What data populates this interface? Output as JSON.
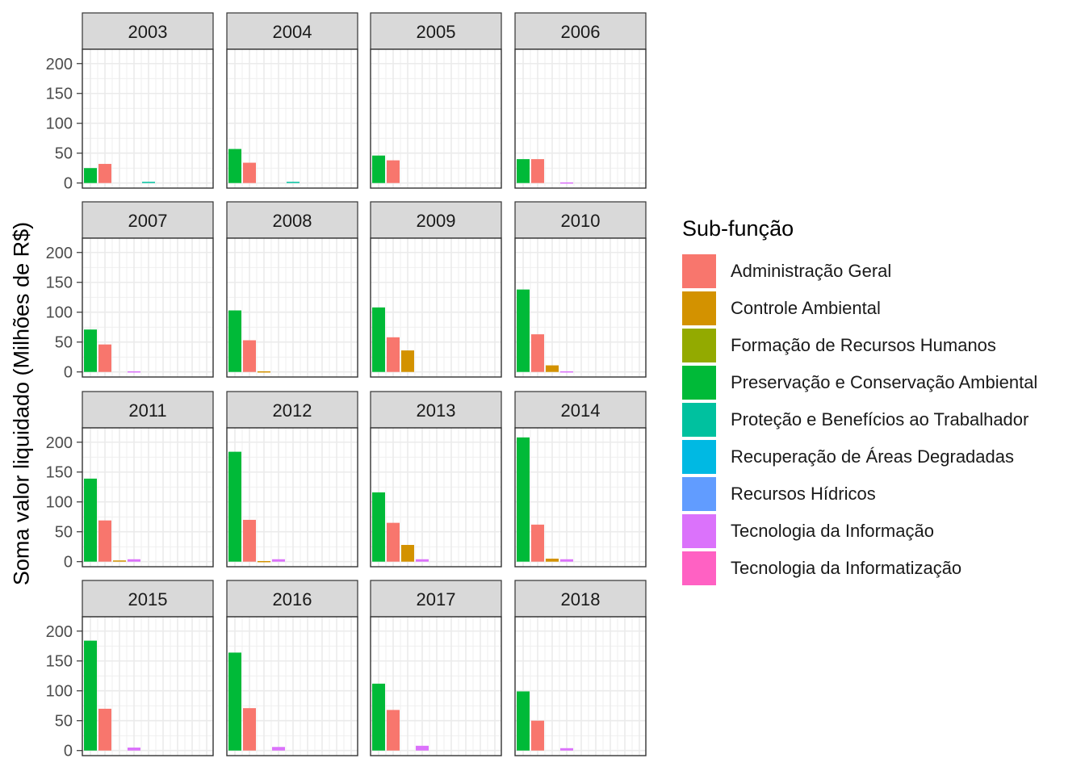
{
  "chart_data": {
    "type": "bar",
    "facet_by": "year",
    "ylabel": "Soma valor liquidado (Milhões de R$)",
    "ylim": [
      0,
      210
    ],
    "yticks": [
      0,
      50,
      100,
      150,
      200
    ],
    "grid": true,
    "legend": {
      "title": "Sub-função",
      "placement": "right",
      "entries": [
        {
          "name": "Administração Geral",
          "color": "#F8766D"
        },
        {
          "name": "Controle Ambiental",
          "color": "#D39200"
        },
        {
          "name": "Formação de Recursos Humanos",
          "color": "#93AA00"
        },
        {
          "name": "Preservação e Conservação Ambiental",
          "color": "#00BA38"
        },
        {
          "name": "Proteção e Benefícios ao Trabalhador",
          "color": "#00C19F"
        },
        {
          "name": "Recuperação de Áreas Degradadas",
          "color": "#00B9E3"
        },
        {
          "name": "Recursos Hídricos",
          "color": "#619CFF"
        },
        {
          "name": "Tecnologia da Informação",
          "color": "#DB72FB"
        },
        {
          "name": "Tecnologia da Informatização",
          "color": "#FF61C3"
        }
      ]
    },
    "bar_order": [
      "Preservação e Conservação Ambiental",
      "Administração Geral",
      "Controle Ambiental",
      "Tecnologia da Informação",
      "Proteção e Benefícios ao Trabalhador"
    ],
    "panels": [
      {
        "year": "2003",
        "values": [
          25,
          32,
          0,
          0,
          2
        ]
      },
      {
        "year": "2004",
        "values": [
          57,
          34,
          0,
          0,
          2
        ]
      },
      {
        "year": "2005",
        "values": [
          46,
          38,
          0,
          0,
          0
        ]
      },
      {
        "year": "2006",
        "values": [
          40,
          40,
          0,
          1,
          0
        ]
      },
      {
        "year": "2007",
        "values": [
          71,
          46,
          0,
          1,
          0
        ]
      },
      {
        "year": "2008",
        "values": [
          103,
          53,
          1,
          0,
          0
        ]
      },
      {
        "year": "2009",
        "values": [
          108,
          58,
          36,
          0,
          0
        ]
      },
      {
        "year": "2010",
        "values": [
          138,
          63,
          11,
          1,
          0
        ]
      },
      {
        "year": "2011",
        "values": [
          139,
          69,
          2,
          4,
          0
        ]
      },
      {
        "year": "2012",
        "values": [
          184,
          70,
          1,
          4,
          0
        ]
      },
      {
        "year": "2013",
        "values": [
          116,
          65,
          28,
          4,
          0
        ]
      },
      {
        "year": "2014",
        "values": [
          208,
          62,
          5,
          4,
          0
        ]
      },
      {
        "year": "2015",
        "values": [
          184,
          70,
          0,
          5,
          0
        ]
      },
      {
        "year": "2016",
        "values": [
          164,
          71,
          0,
          6,
          0
        ]
      },
      {
        "year": "2017",
        "values": [
          112,
          68,
          0,
          8,
          0
        ]
      },
      {
        "year": "2018",
        "values": [
          99,
          50,
          0,
          4,
          0
        ]
      }
    ]
  }
}
